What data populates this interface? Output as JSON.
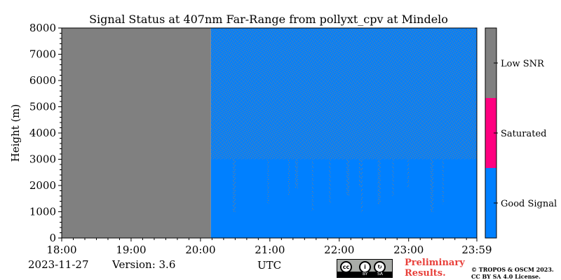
{
  "chart_data": {
    "type": "heatmap",
    "title": "Signal Status at 407nm Far-Range from pollyxt_cpv at Mindelo",
    "ylabel": "Height (m)",
    "xlabel": "UTC",
    "x_ticks": [
      "18:00",
      "19:00",
      "20:00",
      "21:00",
      "22:00",
      "23:00",
      "23:59"
    ],
    "x_tick_hours": [
      18.0,
      19.0,
      20.0,
      21.0,
      22.0,
      23.0,
      23.983
    ],
    "xlim_hours": [
      18.0,
      23.983
    ],
    "y_ticks": [
      0,
      1000,
      2000,
      3000,
      4000,
      5000,
      6000,
      7000,
      8000
    ],
    "ylim": [
      0,
      8000
    ],
    "no_data_until_hour": 20.15,
    "regions": [
      {
        "x_start": 18.0,
        "x_end": 20.15,
        "y_start": 0,
        "y_end": 8000,
        "status": "Low SNR"
      },
      {
        "x_start": 20.15,
        "x_end": 23.983,
        "y_start": 0,
        "y_end": 3000,
        "status": "Good Signal"
      },
      {
        "x_start": 20.15,
        "x_end": 23.983,
        "y_start": 3000,
        "y_end": 8000,
        "status": "Mixed Good Signal / Low SNR"
      }
    ],
    "noisy_columns_hours": [
      20.48,
      20.98,
      21.28,
      21.38,
      21.62,
      21.87,
      22.12,
      22.3,
      22.33,
      22.57,
      22.78,
      23.0,
      23.33,
      23.5
    ],
    "colorbar": {
      "categories": [
        {
          "label": "Good Signal",
          "color": "#0080ff"
        },
        {
          "label": "Saturated",
          "color": "#ff0080"
        },
        {
          "label": "Low SNR",
          "color": "#808080"
        }
      ]
    }
  },
  "footer": {
    "date": "2023-11-27",
    "version": "Version: 3.6",
    "preliminary_line1": "Preliminary",
    "preliminary_line2": "Results.",
    "copyright_line1": "© TROPOS & OSCM 2023.",
    "copyright_line2": "CC BY SA 4.0 License.",
    "license_badge": {
      "icon": "cc-by-sa-icon",
      "left": "BY",
      "right": "SA"
    }
  },
  "colors": {
    "good": "#0080ff",
    "low_snr": "#808080",
    "saturated": "#ff0080",
    "preliminary_text": "#e8403a"
  }
}
